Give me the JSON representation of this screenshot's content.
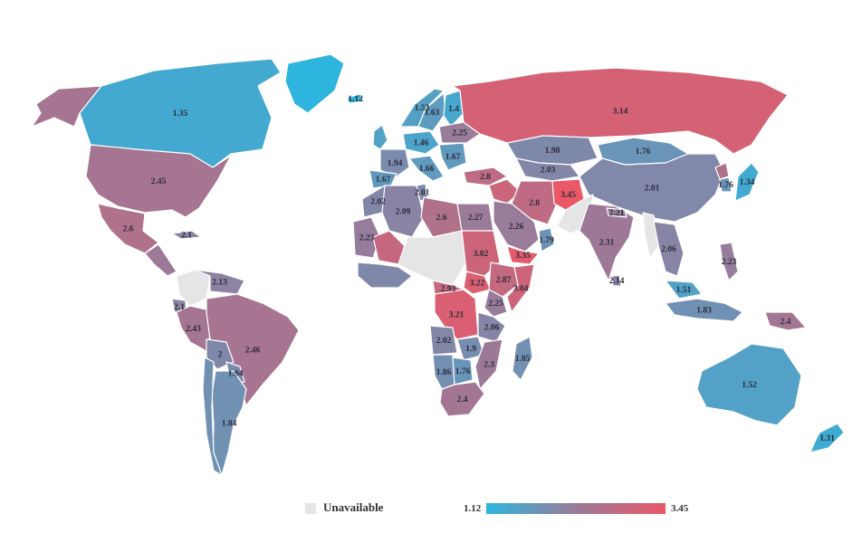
{
  "legend": {
    "unavailable_label": "Unavailable",
    "min_label": "1.12",
    "max_label": "3.45",
    "unavailable_color": "#e5e5e5",
    "low_color": "#2db5de",
    "mid_color": "#9b7a98",
    "high_color": "#ea5868"
  },
  "scale": {
    "min": 1.12,
    "max": 3.45
  },
  "regions": [
    {
      "name": "Alaska",
      "value": 2.45,
      "label": ""
    },
    {
      "name": "Canada",
      "value": 1.35,
      "label": "1.35"
    },
    {
      "name": "Greenland",
      "value": 1.12,
      "label": ""
    },
    {
      "name": "Iceland",
      "value": 1.12,
      "label": "1.12"
    },
    {
      "name": "United States",
      "value": 2.45,
      "label": "2.45"
    },
    {
      "name": "Mexico",
      "value": 2.6,
      "label": "2.6"
    },
    {
      "name": "Cuba",
      "value": 2.1,
      "label": "2.1"
    },
    {
      "name": "Central America",
      "value": 2.3,
      "label": ""
    },
    {
      "name": "Colombia",
      "value": null,
      "label": ""
    },
    {
      "name": "Venezuela",
      "value": 2.13,
      "label": "2.13"
    },
    {
      "name": "Ecuador",
      "value": 2.1,
      "label": "2.1"
    },
    {
      "name": "Peru",
      "value": 2.43,
      "label": "2.43"
    },
    {
      "name": "Brazil",
      "value": 2.46,
      "label": "2.46"
    },
    {
      "name": "Bolivia",
      "value": 2.0,
      "label": "2"
    },
    {
      "name": "Paraguay",
      "value": 1.94,
      "label": "1.94"
    },
    {
      "name": "Argentina",
      "value": 1.84,
      "label": "1.84"
    },
    {
      "name": "Chile",
      "value": 1.84,
      "label": ""
    },
    {
      "name": "Norway",
      "value": 1.53,
      "label": "1.53"
    },
    {
      "name": "Sweden",
      "value": 1.63,
      "label": "1.63"
    },
    {
      "name": "Finland",
      "value": 1.4,
      "label": "1.4"
    },
    {
      "name": "United Kingdom",
      "value": 1.5,
      "label": ""
    },
    {
      "name": "Germany",
      "value": 1.46,
      "label": "1.46"
    },
    {
      "name": "France",
      "value": 1.94,
      "label": "1.94"
    },
    {
      "name": "Spain",
      "value": 1.67,
      "label": "1.67"
    },
    {
      "name": "Italy",
      "value": 1.66,
      "label": "1.66"
    },
    {
      "name": "Ukraine",
      "value": 2.25,
      "label": "2.25"
    },
    {
      "name": "Balkans",
      "value": 1.67,
      "label": "1.67"
    },
    {
      "name": "Turkey",
      "value": 2.8,
      "label": "2.8"
    },
    {
      "name": "Russia",
      "value": 3.14,
      "label": "3.14"
    },
    {
      "name": "Kazakhstan",
      "value": 1.98,
      "label": "1.98"
    },
    {
      "name": "Central Asia",
      "value": 2.03,
      "label": "2.03"
    },
    {
      "name": "Mongolia",
      "value": 1.76,
      "label": "1.76"
    },
    {
      "name": "China",
      "value": 2.01,
      "label": "2.01"
    },
    {
      "name": "Japan",
      "value": 1.34,
      "label": "1.34"
    },
    {
      "name": "South Korea",
      "value": 1.76,
      "label": "1.76"
    },
    {
      "name": "North Korea",
      "value": 2.6,
      "label": ""
    },
    {
      "name": "Iran",
      "value": 2.8,
      "label": "2.8"
    },
    {
      "name": "Afghanistan",
      "value": 3.45,
      "label": "3.45"
    },
    {
      "name": "Pakistan",
      "value": null,
      "label": ""
    },
    {
      "name": "Iraq Syria",
      "value": 3.0,
      "label": ""
    },
    {
      "name": "Saudi Arabia",
      "value": 2.26,
      "label": "2.26"
    },
    {
      "name": "Yemen",
      "value": 3.35,
      "label": "3.35"
    },
    {
      "name": "Oman",
      "value": 1.79,
      "label": "1.79"
    },
    {
      "name": "India",
      "value": 2.31,
      "label": "2.31"
    },
    {
      "name": "Nepal",
      "value": 2.21,
      "label": "2.21"
    },
    {
      "name": "Myanmar",
      "value": null,
      "label": ""
    },
    {
      "name": "Southeast Asia",
      "value": 2.06,
      "label": "2.06"
    },
    {
      "name": "Philippines",
      "value": 2.23,
      "label": "2.23"
    },
    {
      "name": "Sri Lanka",
      "value": 2.14,
      "label": "2.14"
    },
    {
      "name": "Malaysia",
      "value": 1.51,
      "label": "1.51"
    },
    {
      "name": "Indonesia",
      "value": 1.83,
      "label": "1.83"
    },
    {
      "name": "Papua New Guinea",
      "value": 2.4,
      "label": "2.4"
    },
    {
      "name": "Australia",
      "value": 1.52,
      "label": "1.52"
    },
    {
      "name": "New Zealand",
      "value": 1.31,
      "label": "1.31"
    },
    {
      "name": "Morocco",
      "value": 2.02,
      "label": "2.02"
    },
    {
      "name": "Algeria",
      "value": 2.09,
      "label": "2.09"
    },
    {
      "name": "Tunisia",
      "value": 2.01,
      "label": "2.01"
    },
    {
      "name": "Libya",
      "value": 2.6,
      "label": "2.6"
    },
    {
      "name": "Egypt",
      "value": 2.27,
      "label": "2.27"
    },
    {
      "name": "Mauritania",
      "value": 2.23,
      "label": "2.23"
    },
    {
      "name": "Mali",
      "value": 2.9,
      "label": ""
    },
    {
      "name": "Niger Chad",
      "value": null,
      "label": ""
    },
    {
      "name": "Sudan",
      "value": 3.02,
      "label": "3.02"
    },
    {
      "name": "West Africa Coast",
      "value": 2.0,
      "label": ""
    },
    {
      "name": "Central African Republic",
      "value": 2.93,
      "label": "2.93"
    },
    {
      "name": "South Sudan",
      "value": 3.22,
      "label": "3.22"
    },
    {
      "name": "Ethiopia",
      "value": 2.87,
      "label": "2.87"
    },
    {
      "name": "Somalia",
      "value": 3.04,
      "label": "3.04"
    },
    {
      "name": "DR Congo",
      "value": 3.21,
      "label": "3.21"
    },
    {
      "name": "Kenya",
      "value": 2.25,
      "label": "2.25"
    },
    {
      "name": "Tanzania",
      "value": 2.06,
      "label": "2.06"
    },
    {
      "name": "Angola",
      "value": 2.02,
      "label": "2.02"
    },
    {
      "name": "Zambia",
      "value": 1.9,
      "label": "1.9"
    },
    {
      "name": "Namibia",
      "value": 1.86,
      "label": "1.86"
    },
    {
      "name": "Botswana",
      "value": 1.76,
      "label": "1.76"
    },
    {
      "name": "Mozambique",
      "value": 2.3,
      "label": "2.3"
    },
    {
      "name": "South Africa",
      "value": 2.4,
      "label": "2.4"
    },
    {
      "name": "Madagascar",
      "value": 1.85,
      "label": "1.85"
    }
  ]
}
